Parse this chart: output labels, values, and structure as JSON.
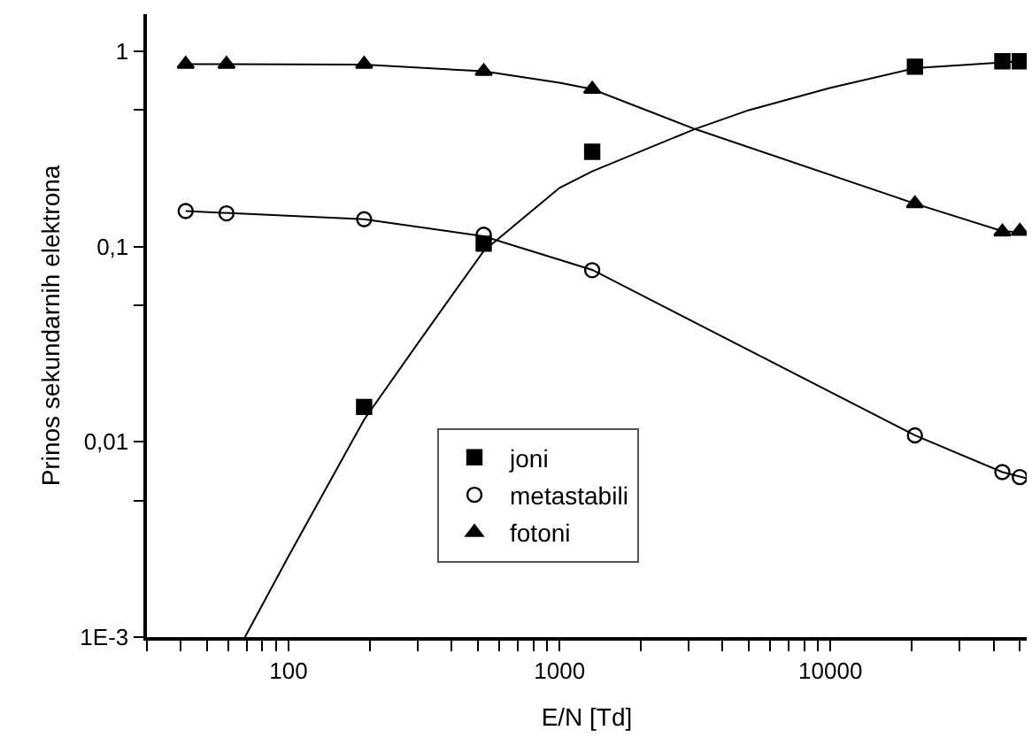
{
  "chart_data": {
    "type": "scatter",
    "xlabel": "E/N [Td]",
    "ylabel": "Prinos sekundarnih elektrona",
    "log": "xy",
    "legend": "bottom",
    "xlim": [
      30,
      53000
    ],
    "ylim": [
      0.001,
      1.55
    ],
    "xticks": [
      {
        "value": 30,
        "label": null
      },
      {
        "value": 40,
        "label": null
      },
      {
        "value": 50,
        "label": null
      },
      {
        "value": 60,
        "label": null
      },
      {
        "value": 70,
        "label": null
      },
      {
        "value": 80,
        "label": null
      },
      {
        "value": 90,
        "label": null
      },
      100,
      {
        "value": 200,
        "label": null
      },
      {
        "value": 300,
        "label": null
      },
      {
        "value": 400,
        "label": null
      },
      {
        "value": 500,
        "label": null
      },
      {
        "value": 600,
        "label": null
      },
      {
        "value": 700,
        "label": null
      },
      {
        "value": 800,
        "label": null
      },
      {
        "value": 900,
        "label": null
      },
      1000,
      {
        "value": 2000,
        "label": null
      },
      {
        "value": 3000,
        "label": null
      },
      {
        "value": 4000,
        "label": null
      },
      {
        "value": 5000,
        "label": null
      },
      {
        "value": 6000,
        "label": null
      },
      {
        "value": 7000,
        "label": null
      },
      {
        "value": 8000,
        "label": null
      },
      {
        "value": 9000,
        "label": null
      },
      10000,
      {
        "value": 20000,
        "label": null
      },
      {
        "value": 30000,
        "label": null
      },
      {
        "value": 40000,
        "label": null
      },
      {
        "value": 50000,
        "label": null
      }
    ],
    "yticks": [
      {
        "value": 0.001,
        "label": "1E-3"
      },
      {
        "value": 0.005,
        "label": null
      },
      {
        "value": 0.01,
        "label": "0,01"
      },
      {
        "value": 0.05,
        "label": null
      },
      {
        "value": 0.1,
        "label": "0,1"
      },
      {
        "value": 0.5,
        "label": null
      },
      1
    ],
    "series": [
      {
        "name": "joni",
        "color": "#000000",
        "marker": "square",
        "x": [
          190,
          525,
          1320,
          20500,
          43100,
          50000
        ],
        "values": [
          0.0151,
          0.1035,
          0.306,
          0.834,
          0.889,
          0.889
        ]
      },
      {
        "name": "metastabili",
        "color": "#000000",
        "marker": "circle",
        "x": [
          41.7,
          59,
          190,
          525,
          1320,
          20500,
          43100,
          50000
        ],
        "values": [
          0.152,
          0.148,
          0.138,
          0.115,
          0.0757,
          0.0108,
          0.007,
          0.0066
        ]
      },
      {
        "name": "fotoni",
        "color": "#000000",
        "marker": "triangle",
        "x": [
          41.7,
          59,
          190,
          525,
          1320,
          20500,
          43100,
          50000
        ],
        "values": [
          0.86,
          0.86,
          0.86,
          0.79,
          0.64,
          0.166,
          0.119,
          0.12
        ]
      },
      {
        "type": "line",
        "color": "#000000",
        "line_style": "solid",
        "x": [
          69,
          100,
          190,
          300,
          525,
          1000,
          1320,
          3160,
          5000,
          10000,
          20500,
          50000,
          53000
        ],
        "values": [
          0.001,
          0.0026,
          0.013,
          0.032,
          0.095,
          0.2,
          0.243,
          0.4,
          0.5,
          0.65,
          0.82,
          0.89,
          0.89
        ]
      },
      {
        "type": "line",
        "color": "#000000",
        "line_style": "solid",
        "x": [
          41.7,
          190,
          525,
          1320,
          20500,
          43100,
          53000
        ],
        "values": [
          0.152,
          0.138,
          0.113,
          0.076,
          0.0108,
          0.007,
          0.0065
        ]
      },
      {
        "type": "line",
        "color": "#000000",
        "line_style": "solid",
        "x": [
          41.7,
          190,
          525,
          1000,
          1320,
          3160,
          20500,
          43100,
          53000
        ],
        "values": [
          0.86,
          0.855,
          0.79,
          0.69,
          0.64,
          0.4,
          0.166,
          0.12,
          0.118
        ]
      }
    ]
  }
}
